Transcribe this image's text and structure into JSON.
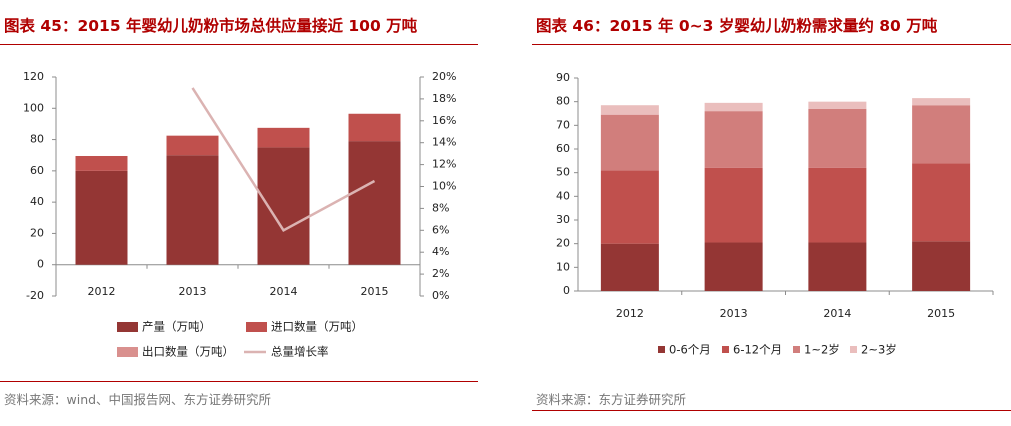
{
  "left": {
    "title": "图表 45：2015 年婴幼儿奶粉市场总供应量接近 100 万吨",
    "source": "资料来源：wind、中国报告网、东方证券研究所",
    "chart_data": {
      "type": "bar",
      "stacked": true,
      "categories": [
        "2012",
        "2013",
        "2014",
        "2015"
      ],
      "series": [
        {
          "name": "产量（万吨）",
          "kind": "bar",
          "axis": "left",
          "color": "#943634",
          "values": [
            60,
            70,
            75,
            79
          ]
        },
        {
          "name": "进口数量（万吨）",
          "kind": "bar",
          "axis": "left",
          "color": "#c0504d",
          "values": [
            9.5,
            12.5,
            12.5,
            17.5
          ]
        },
        {
          "name": "出口数量（万吨）",
          "kind": "bar",
          "axis": "left",
          "color": "#d9908e",
          "values": [
            0,
            0,
            0,
            0
          ]
        },
        {
          "name": "总量增长率",
          "kind": "line",
          "axis": "right",
          "color": "#dbb3b2",
          "values": [
            null,
            19,
            6,
            10.5
          ]
        }
      ],
      "ylim": [
        -20,
        120
      ],
      "yticks": [
        "-20",
        "0",
        "20",
        "40",
        "60",
        "80",
        "100",
        "120"
      ],
      "y2lim": [
        0,
        20
      ],
      "y2ticks": [
        "0%",
        "2%",
        "4%",
        "6%",
        "8%",
        "10%",
        "12%",
        "14%",
        "16%",
        "18%",
        "20%"
      ],
      "legend_position": "bottom"
    }
  },
  "right": {
    "title": "图表 46：2015 年 0~3 岁婴幼儿奶粉需求量约 80 万吨",
    "source": "资料来源：东方证券研究所",
    "chart_data": {
      "type": "bar",
      "stacked": true,
      "categories": [
        "2012",
        "2013",
        "2014",
        "2015"
      ],
      "series": [
        {
          "name": "0-6个月",
          "color": "#943634",
          "values": [
            20,
            20.5,
            20.5,
            21
          ]
        },
        {
          "name": "6-12个月",
          "color": "#c0504d",
          "values": [
            31,
            31.5,
            31.5,
            33
          ]
        },
        {
          "name": "1~2岁",
          "color": "#d17e7c",
          "values": [
            23.5,
            24,
            25,
            24.5
          ]
        },
        {
          "name": "2~3岁",
          "color": "#eabebd",
          "values": [
            4,
            3.5,
            3,
            3
          ]
        }
      ],
      "ylim": [
        0,
        90
      ],
      "yticks": [
        "0",
        "10",
        "20",
        "30",
        "40",
        "50",
        "60",
        "70",
        "80",
        "90"
      ],
      "legend_position": "bottom"
    }
  }
}
